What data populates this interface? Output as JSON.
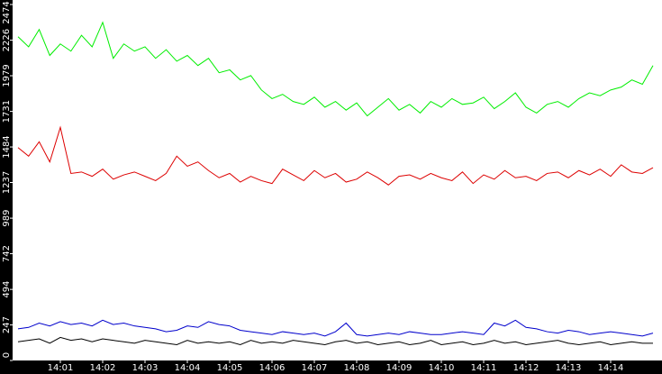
{
  "chart_data": {
    "type": "line",
    "categories": [
      null,
      null,
      null,
      null,
      "14:01",
      null,
      null,
      null,
      "14:02",
      null,
      null,
      null,
      "14:03",
      null,
      null,
      null,
      "14:04",
      null,
      null,
      null,
      "14:05",
      null,
      null,
      null,
      "14:06",
      null,
      null,
      null,
      "14:07",
      null,
      null,
      null,
      "14:08",
      null,
      null,
      null,
      "14:09",
      null,
      null,
      null,
      "14:10",
      null,
      null,
      null,
      "14:11",
      null,
      null,
      null,
      "14:12",
      null,
      null,
      null,
      "14:13",
      null,
      null,
      null,
      "14:14",
      null,
      null,
      null,
      null
    ],
    "ylim": [
      0,
      2474
    ],
    "yticks": [
      0,
      247,
      494,
      742,
      989,
      1237,
      1484,
      1731,
      1979,
      2226,
      2474
    ],
    "grid": false,
    "series": [
      {
        "color": "#00ee00",
        "values": [
          2250,
          2180,
          2300,
          2120,
          2200,
          2150,
          2260,
          2180,
          2350,
          2100,
          2200,
          2150,
          2180,
          2100,
          2160,
          2080,
          2120,
          2050,
          2100,
          2000,
          2020,
          1950,
          1980,
          1880,
          1820,
          1850,
          1800,
          1780,
          1830,
          1760,
          1800,
          1740,
          1790,
          1700,
          1760,
          1820,
          1740,
          1780,
          1720,
          1800,
          1760,
          1820,
          1780,
          1790,
          1830,
          1750,
          1800,
          1860,
          1760,
          1720,
          1780,
          1800,
          1760,
          1820,
          1860,
          1840,
          1880,
          1900,
          1950,
          1920,
          2050
        ]
      },
      {
        "color": "#dd0000",
        "values": [
          1480,
          1420,
          1520,
          1380,
          1620,
          1300,
          1310,
          1280,
          1330,
          1260,
          1290,
          1310,
          1280,
          1250,
          1300,
          1420,
          1350,
          1380,
          1320,
          1270,
          1300,
          1240,
          1280,
          1250,
          1230,
          1330,
          1290,
          1250,
          1320,
          1270,
          1300,
          1240,
          1260,
          1310,
          1270,
          1220,
          1280,
          1290,
          1260,
          1300,
          1270,
          1250,
          1310,
          1230,
          1290,
          1260,
          1320,
          1270,
          1280,
          1250,
          1300,
          1310,
          1270,
          1320,
          1290,
          1330,
          1280,
          1360,
          1310,
          1300,
          1340
        ]
      },
      {
        "color": "#0000cc",
        "values": [
          220,
          230,
          260,
          240,
          270,
          250,
          260,
          240,
          280,
          250,
          260,
          240,
          230,
          220,
          200,
          210,
          240,
          230,
          270,
          250,
          240,
          210,
          200,
          190,
          180,
          200,
          190,
          180,
          190,
          170,
          200,
          260,
          180,
          170,
          180,
          190,
          180,
          200,
          190,
          180,
          180,
          190,
          200,
          190,
          180,
          260,
          240,
          280,
          230,
          220,
          200,
          190,
          210,
          200,
          180,
          190,
          200,
          190,
          180,
          170,
          190
        ]
      },
      {
        "color": "#000000",
        "values": [
          130,
          140,
          150,
          120,
          160,
          140,
          150,
          130,
          150,
          140,
          130,
          120,
          140,
          130,
          120,
          110,
          140,
          120,
          130,
          120,
          130,
          110,
          140,
          120,
          130,
          120,
          140,
          130,
          120,
          110,
          130,
          140,
          120,
          130,
          110,
          120,
          130,
          110,
          120,
          140,
          110,
          120,
          130,
          110,
          120,
          140,
          120,
          130,
          110,
          120,
          130,
          140,
          120,
          110,
          120,
          130,
          110,
          120,
          130,
          120,
          120
        ]
      }
    ]
  }
}
